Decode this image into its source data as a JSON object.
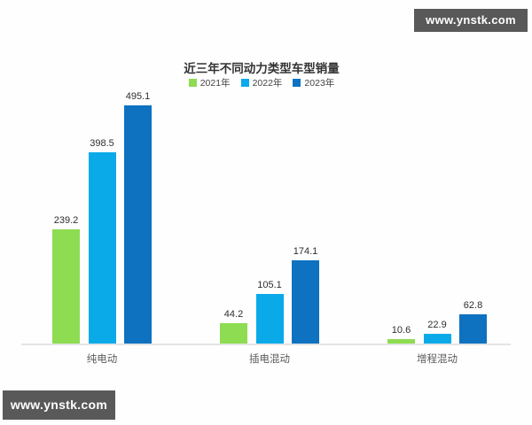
{
  "watermark": {
    "text": "www.ynstk.com",
    "bg": "#595959",
    "fg": "#ffffff"
  },
  "chart_data": {
    "type": "bar",
    "title": "近三年不同动力类型车型销量",
    "categories": [
      "纯电动",
      "插电混动",
      "增程混动"
    ],
    "series": [
      {
        "name": "2021年",
        "color": "#8DDC52",
        "values": [
          239.2,
          44.2,
          10.6
        ]
      },
      {
        "name": "2022年",
        "color": "#0AAAE9",
        "values": [
          398.5,
          105.1,
          22.9
        ]
      },
      {
        "name": "2023年",
        "color": "#0E72C0",
        "values": [
          495.1,
          174.1,
          62.8
        ]
      }
    ],
    "value_labels_shown": true,
    "ylim": [
      0,
      520
    ],
    "axis_line_color": "#e4e4e4",
    "legend_position": "top-center",
    "grid": "off"
  }
}
